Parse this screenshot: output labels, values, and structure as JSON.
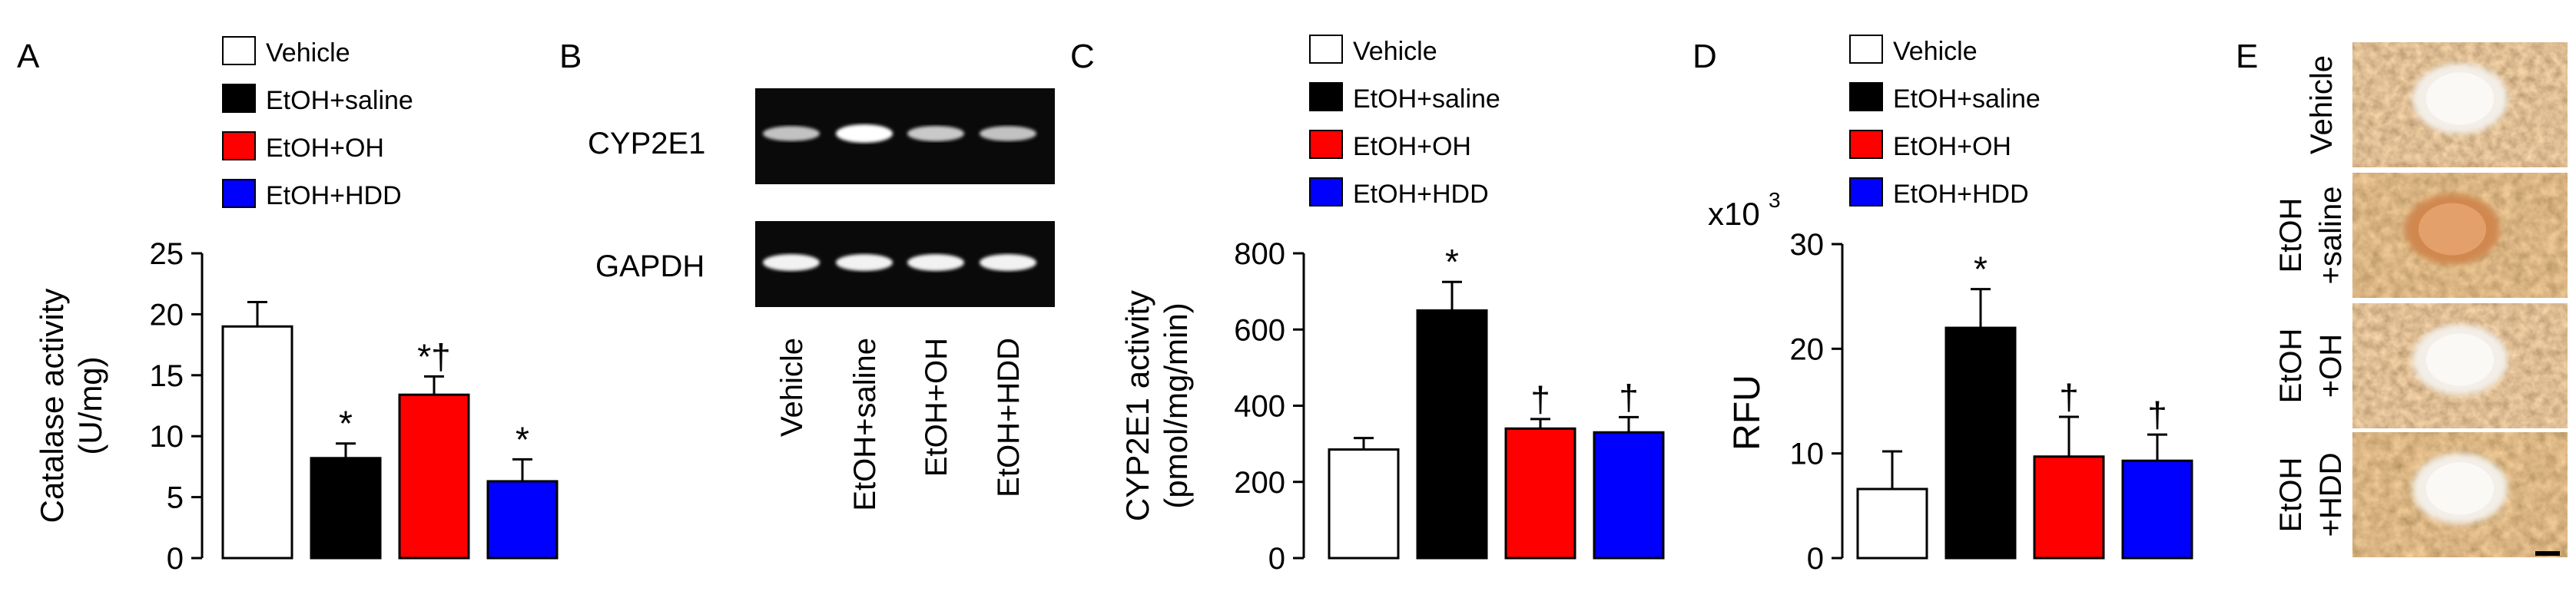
{
  "panels": {
    "A": {
      "letter": "A"
    },
    "B": {
      "letter": "B"
    },
    "C": {
      "letter": "C"
    },
    "D": {
      "letter": "D"
    },
    "E": {
      "letter": "E"
    }
  },
  "legend": [
    {
      "label": "Vehicle",
      "color": "#ffffff"
    },
    {
      "label": "EtOH+saline",
      "color": "#000000"
    },
    {
      "label": "EtOH+OH",
      "color": "#ff0000"
    },
    {
      "label": "EtOH+HDD",
      "color": "#0000ff"
    }
  ],
  "blot": {
    "row_labels": [
      "CYP2E1",
      "GAPDH"
    ],
    "lane_labels": [
      "Vehicle",
      "EtOH+saline",
      "EtOH+OH",
      "EtOH+HDD"
    ],
    "band_intensity": {
      "CYP2E1": [
        0.55,
        1.0,
        0.6,
        0.55
      ],
      "GAPDH": [
        0.9,
        0.9,
        0.9,
        0.9
      ]
    }
  },
  "histology": {
    "row_labels": [
      [
        "Vehicle"
      ],
      [
        "EtOH",
        "+saline"
      ],
      [
        "EtOH",
        "+OH"
      ],
      [
        "EtOH",
        "+HDD"
      ]
    ]
  },
  "chart_data": [
    {
      "type": "bar",
      "panel": "A",
      "categories": [
        "Vehicle",
        "EtOH+saline",
        "EtOH+OH",
        "EtOH+HDD"
      ],
      "values": [
        19.0,
        8.2,
        13.4,
        6.3
      ],
      "errors": [
        2.0,
        1.2,
        1.5,
        1.8
      ],
      "annotations": [
        "",
        "*",
        "*†",
        "*"
      ],
      "ylabel_lines": [
        "Catalase activity",
        "(U/mg)"
      ],
      "ylim": [
        0,
        25
      ],
      "yticks": [
        0,
        5,
        10,
        15,
        20,
        25
      ],
      "colors": [
        "#ffffff",
        "#000000",
        "#ff0000",
        "#0000ff"
      ]
    },
    {
      "type": "bar",
      "panel": "C",
      "categories": [
        "Vehicle",
        "EtOH+saline",
        "EtOH+OH",
        "EtOH+HDD"
      ],
      "values": [
        285,
        650,
        340,
        330
      ],
      "errors": [
        30,
        75,
        25,
        40
      ],
      "annotations": [
        "",
        "*",
        "†",
        "†"
      ],
      "ylabel_lines": [
        "CYP2E1 activity",
        "(pmol/mg/min)"
      ],
      "ylim": [
        0,
        800
      ],
      "yticks": [
        0,
        200,
        400,
        600,
        800
      ],
      "colors": [
        "#ffffff",
        "#000000",
        "#ff0000",
        "#0000ff"
      ]
    },
    {
      "type": "bar",
      "panel": "D",
      "categories": [
        "Vehicle",
        "EtOH+saline",
        "EtOH+OH",
        "EtOH+HDD"
      ],
      "values": [
        6.6,
        22.0,
        9.7,
        9.3
      ],
      "errors": [
        3.6,
        3.7,
        3.8,
        2.5
      ],
      "annotations": [
        "",
        "*",
        "†",
        "†"
      ],
      "ylabel_lines": [
        "RFU"
      ],
      "scale_label": "x10",
      "scale_exponent": "3",
      "ylim": [
        0,
        30
      ],
      "yticks": [
        0,
        10,
        20,
        30
      ],
      "colors": [
        "#ffffff",
        "#000000",
        "#ff0000",
        "#0000ff"
      ]
    }
  ]
}
